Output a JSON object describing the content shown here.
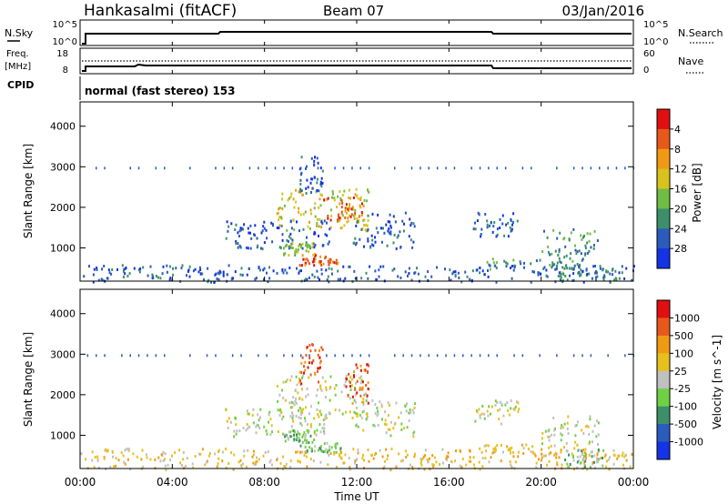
{
  "header": {
    "station": "Hankasalmi (fitACF)",
    "beam": "Beam 07",
    "date": "03/Jan/2016"
  },
  "nsky_panel": {
    "left_label": "N.Sky",
    "left_ticks": [
      "10^5",
      "10^0"
    ],
    "right_label": "N.Search",
    "right_ticks": [
      "10^5",
      "10^0"
    ]
  },
  "freq_panel": {
    "left_label_1": "Freq.",
    "left_label_2": "[MHz]",
    "left_ticks": [
      "18",
      "8"
    ],
    "right_label": "Nave",
    "right_ticks": [
      "60",
      "0"
    ]
  },
  "cpid": {
    "label": "CPID",
    "value": "normal (fast stereo) 153"
  },
  "x_axis": {
    "title": "Time UT",
    "ticks": [
      "00:00",
      "04:00",
      "08:00",
      "12:00",
      "16:00",
      "20:00",
      "00:00"
    ]
  },
  "chart_data": [
    {
      "type": "heatmap",
      "title": "Power",
      "xlabel": "Time UT",
      "ylabel": "Slant Range [km]",
      "xlim": [
        0,
        24
      ],
      "ylim": [
        180,
        4600
      ],
      "yticks": [
        1000,
        2000,
        3000,
        4000
      ],
      "colorbar": {
        "label": "Power [dB]",
        "ticks": [
          "4",
          "8",
          "12",
          "16",
          "20",
          "24",
          "28"
        ],
        "colors": [
          "#1432e6",
          "#2a5bbd",
          "#3d8f6a",
          "#6fbd45",
          "#d9c21e",
          "#f09a14",
          "#e8581a",
          "#e01010"
        ]
      },
      "regions": [
        {
          "t0": 8.5,
          "t1": 12.5,
          "r0": 1450,
          "r1": 2500,
          "level": 4
        },
        {
          "t0": 10.5,
          "t1": 12.2,
          "r0": 1700,
          "r1": 2300,
          "level": 6
        },
        {
          "t0": 6.2,
          "t1": 10.8,
          "r0": 1000,
          "r1": 1700,
          "level": 1
        },
        {
          "t0": 8.8,
          "t1": 10.2,
          "r0": 850,
          "r1": 1150,
          "level": 3
        },
        {
          "t0": 9.5,
          "t1": 11.3,
          "r0": 600,
          "r1": 850,
          "level": 6
        },
        {
          "t0": 11.8,
          "t1": 14.5,
          "r0": 1000,
          "r1": 1900,
          "level": 1
        },
        {
          "t0": 17.0,
          "t1": 19.0,
          "r0": 1300,
          "r1": 1900,
          "level": 1
        },
        {
          "t0": 20.0,
          "t1": 22.5,
          "r0": 800,
          "r1": 1500,
          "level": 2
        },
        {
          "t0": 17.5,
          "t1": 22.0,
          "r0": 500,
          "r1": 800,
          "level": 2
        },
        {
          "t0": 20.5,
          "t1": 23.5,
          "r0": 200,
          "r1": 600,
          "level": 2
        },
        {
          "t0": 0.0,
          "t1": 24.0,
          "r0": 180,
          "r1": 600,
          "level": 1
        },
        {
          "t0": 9.5,
          "t1": 10.5,
          "r0": 2300,
          "r1": 3300,
          "level": 1
        }
      ]
    },
    {
      "type": "heatmap",
      "title": "Velocity",
      "xlabel": "Time UT",
      "ylabel": "Slant Range [km]",
      "xlim": [
        0,
        24
      ],
      "ylim": [
        180,
        4600
      ],
      "yticks": [
        1000,
        2000,
        3000,
        4000
      ],
      "colorbar": {
        "label": "Velocity [m s^-1]",
        "ticks": [
          "1000",
          "500",
          "100",
          "25",
          "-25",
          "-100",
          "-500",
          "-1000"
        ],
        "colors": [
          "#1432e6",
          "#2a5bbd",
          "#3d8f6a",
          "#6fd045",
          "#c0c0c0",
          "#e8c01e",
          "#f09a14",
          "#e8581a",
          "#e01010"
        ]
      },
      "regions": [
        {
          "t0": 8.5,
          "t1": 12.5,
          "r0": 1450,
          "r1": 2500,
          "level": 4
        },
        {
          "t0": 6.2,
          "t1": 10.8,
          "r0": 1000,
          "r1": 1700,
          "level": 4
        },
        {
          "t0": 11.8,
          "t1": 14.5,
          "r0": 1000,
          "r1": 1900,
          "level": 4
        },
        {
          "t0": 17.0,
          "t1": 19.0,
          "r0": 1300,
          "r1": 1900,
          "level": 4
        },
        {
          "t0": 20.0,
          "t1": 22.5,
          "r0": 800,
          "r1": 1500,
          "level": 4
        },
        {
          "t0": 8.8,
          "t1": 10.2,
          "r0": 850,
          "r1": 1150,
          "level": 3
        },
        {
          "t0": 9.5,
          "t1": 11.3,
          "r0": 600,
          "r1": 850,
          "level": 3
        },
        {
          "t0": 9.5,
          "t1": 10.5,
          "r0": 2300,
          "r1": 3300,
          "level": 7
        },
        {
          "t0": 11.5,
          "t1": 12.5,
          "r0": 1800,
          "r1": 2800,
          "level": 7
        },
        {
          "t0": 0.0,
          "t1": 24.0,
          "r0": 180,
          "r1": 700,
          "level": 5
        },
        {
          "t0": 17.5,
          "t1": 22.0,
          "r0": 500,
          "r1": 800,
          "level": 5
        },
        {
          "t0": 21.0,
          "t1": 23.0,
          "r0": 200,
          "r1": 700,
          "level": 3
        }
      ]
    }
  ]
}
